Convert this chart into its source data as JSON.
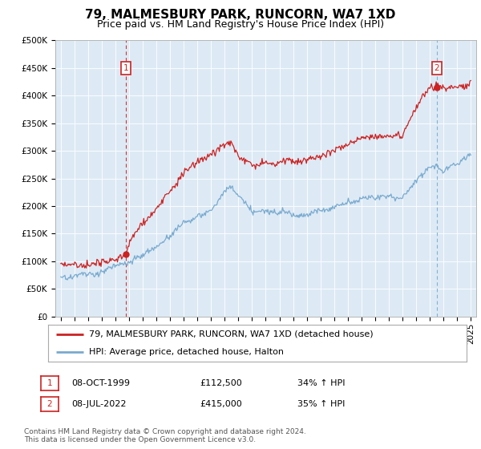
{
  "title": "79, MALMESBURY PARK, RUNCORN, WA7 1XD",
  "subtitle": "Price paid vs. HM Land Registry's House Price Index (HPI)",
  "ylim": [
    0,
    500000
  ],
  "yticks": [
    0,
    50000,
    100000,
    150000,
    200000,
    250000,
    300000,
    350000,
    400000,
    450000,
    500000
  ],
  "ytick_labels": [
    "£0",
    "£50K",
    "£100K",
    "£150K",
    "£200K",
    "£250K",
    "£300K",
    "£350K",
    "£400K",
    "£450K",
    "£500K"
  ],
  "xlim_start": 1994.6,
  "xlim_end": 2025.4,
  "hpi_color": "#7aaacf",
  "price_color": "#cc2222",
  "vline1_color": "#cc2222",
  "vline2_color": "#7aaacf",
  "plot_bg": "#ddeaf5",
  "transaction1_year": 1999.77,
  "transaction1_price": 112500,
  "transaction2_year": 2022.52,
  "transaction2_price": 415000,
  "legend_label1": "79, MALMESBURY PARK, RUNCORN, WA7 1XD (detached house)",
  "legend_label2": "HPI: Average price, detached house, Halton",
  "note1_label": "1",
  "note1_date": "08-OCT-1999",
  "note1_price": "£112,500",
  "note1_hpi": "34% ↑ HPI",
  "note2_label": "2",
  "note2_date": "08-JUL-2022",
  "note2_price": "£415,000",
  "note2_hpi": "35% ↑ HPI",
  "footer": "Contains HM Land Registry data © Crown copyright and database right 2024.\nThis data is licensed under the Open Government Licence v3.0.",
  "title_fontsize": 11,
  "subtitle_fontsize": 9,
  "tick_fontsize": 7.5,
  "legend_fontsize": 8,
  "note_fontsize": 8,
  "footer_fontsize": 6.5,
  "hpi_waypoints_x": [
    1995,
    1996,
    1997,
    1998,
    1999,
    2000,
    2001,
    2002,
    2003,
    2004,
    2005,
    2006,
    2007,
    2007.5,
    2008,
    2009,
    2010,
    2011,
    2012,
    2013,
    2014,
    2015,
    2016,
    2017,
    2018,
    2019,
    2020,
    2021,
    2022,
    2022.5,
    2023,
    2024,
    2025
  ],
  "hpi_waypoints_y": [
    70000,
    72000,
    76000,
    80000,
    84000,
    92000,
    105000,
    120000,
    140000,
    160000,
    170000,
    180000,
    220000,
    225000,
    210000,
    185000,
    185000,
    183000,
    182000,
    183000,
    187000,
    195000,
    205000,
    215000,
    220000,
    222000,
    220000,
    255000,
    275000,
    280000,
    265000,
    278000,
    295000
  ],
  "price_waypoints_x": [
    1995,
    1996,
    1997,
    1998,
    1999,
    1999.77,
    2000,
    2001,
    2002,
    2003,
    2004,
    2005,
    2006,
    2007,
    2007.5,
    2008,
    2009,
    2010,
    2011,
    2012,
    2013,
    2014,
    2015,
    2016,
    2017,
    2018,
    2019,
    2020,
    2021,
    2022,
    2022.52,
    2023,
    2024,
    2025
  ],
  "price_waypoints_y": [
    95000,
    96000,
    97000,
    99000,
    101000,
    112500,
    135000,
    158000,
    185000,
    215000,
    250000,
    265000,
    278000,
    295000,
    300000,
    278000,
    255000,
    258000,
    258000,
    255000,
    258000,
    265000,
    275000,
    288000,
    302000,
    310000,
    315000,
    312000,
    370000,
    410000,
    415000,
    405000,
    415000,
    425000
  ]
}
